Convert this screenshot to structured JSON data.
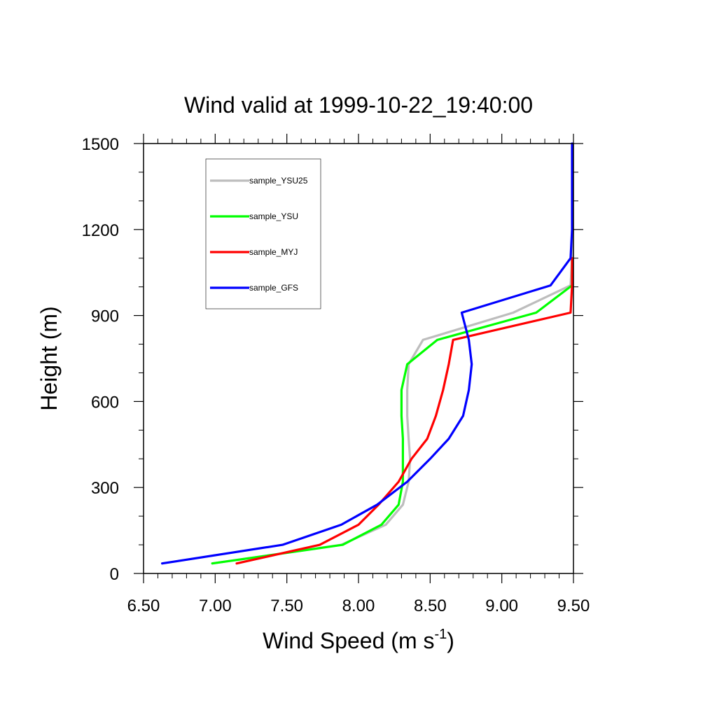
{
  "chart_data": {
    "type": "line",
    "title": "Wind valid at 1999-10-22_19:40:00",
    "xlabel": "Wind Speed (m s",
    "xlabel_superscript": "-1",
    "xlabel_suffix": ")",
    "ylabel": "Height (m)",
    "xlim": [
      6.5,
      9.5
    ],
    "ylim": [
      0,
      1500
    ],
    "x_ticks": [
      6.5,
      7.0,
      7.5,
      8.0,
      8.5,
      9.0,
      9.5
    ],
    "x_tick_labels": [
      "6.50",
      "7.00",
      "7.50",
      "8.00",
      "8.50",
      "9.00",
      "9.50"
    ],
    "y_ticks": [
      0,
      300,
      600,
      900,
      1200,
      1500
    ],
    "y_tick_labels": [
      "0",
      "300",
      "600",
      "900",
      "1200",
      "1500"
    ],
    "grid": false,
    "legend_position": "top-left",
    "series": [
      {
        "name": "sample_YSU25",
        "color": "#bdbdbd",
        "points": [
          [
            6.98,
            35
          ],
          [
            7.88,
            100
          ],
          [
            8.19,
            170
          ],
          [
            8.31,
            240
          ],
          [
            8.35,
            320
          ],
          [
            8.36,
            400
          ],
          [
            8.35,
            470
          ],
          [
            8.34,
            550
          ],
          [
            8.34,
            640
          ],
          [
            8.35,
            730
          ],
          [
            8.45,
            815
          ],
          [
            9.08,
            910
          ],
          [
            9.48,
            1005
          ],
          [
            9.49,
            1100
          ],
          [
            9.49,
            1200
          ],
          [
            9.49,
            1300
          ],
          [
            9.49,
            1500
          ]
        ]
      },
      {
        "name": "sample_YSU",
        "color": "#00ff00",
        "points": [
          [
            6.98,
            35
          ],
          [
            7.89,
            100
          ],
          [
            8.16,
            170
          ],
          [
            8.28,
            240
          ],
          [
            8.31,
            320
          ],
          [
            8.31,
            400
          ],
          [
            8.31,
            470
          ],
          [
            8.3,
            550
          ],
          [
            8.3,
            640
          ],
          [
            8.34,
            730
          ],
          [
            8.55,
            815
          ],
          [
            9.24,
            910
          ],
          [
            9.49,
            1005
          ],
          [
            9.49,
            1100
          ]
        ]
      },
      {
        "name": "sample_MYJ",
        "color": "#ff0000",
        "points": [
          [
            7.15,
            35
          ],
          [
            7.73,
            100
          ],
          [
            8.0,
            170
          ],
          [
            8.14,
            240
          ],
          [
            8.28,
            320
          ],
          [
            8.37,
            400
          ],
          [
            8.48,
            470
          ],
          [
            8.54,
            550
          ],
          [
            8.59,
            640
          ],
          [
            8.63,
            730
          ],
          [
            8.66,
            815
          ],
          [
            9.48,
            910
          ],
          [
            9.49,
            1005
          ],
          [
            9.49,
            1100
          ]
        ]
      },
      {
        "name": "sample_GFS",
        "color": "#0000ff",
        "points": [
          [
            6.63,
            35
          ],
          [
            7.47,
            100
          ],
          [
            7.88,
            170
          ],
          [
            8.13,
            240
          ],
          [
            8.34,
            320
          ],
          [
            8.5,
            400
          ],
          [
            8.63,
            470
          ],
          [
            8.73,
            550
          ],
          [
            8.77,
            640
          ],
          [
            8.79,
            730
          ],
          [
            8.77,
            815
          ],
          [
            8.72,
            910
          ],
          [
            9.34,
            1005
          ],
          [
            9.48,
            1100
          ],
          [
            9.49,
            1200
          ],
          [
            9.49,
            1300
          ],
          [
            9.49,
            1500
          ]
        ]
      }
    ]
  }
}
